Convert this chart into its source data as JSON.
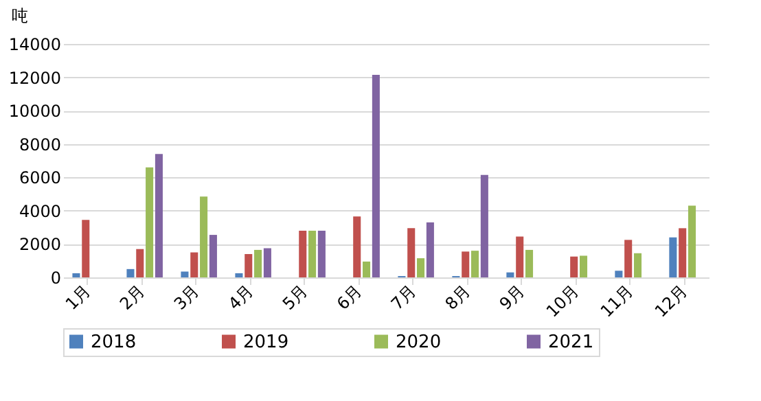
{
  "chart_data": {
    "type": "bar",
    "ylabel": "吨",
    "categories": [
      "1月",
      "2月",
      "3月",
      "4月",
      "5月",
      "6月",
      "7月",
      "8月",
      "9月",
      "10月",
      "11月",
      "12月"
    ],
    "series": [
      {
        "name": "2018",
        "color": "#4f81bd",
        "values": [
          250,
          500,
          350,
          250,
          null,
          null,
          80,
          80,
          300,
          null,
          400,
          2400
        ]
      },
      {
        "name": "2019",
        "color": "#c0504d",
        "values": [
          3450,
          1700,
          1500,
          1400,
          2800,
          3650,
          2950,
          1550,
          2450,
          1250,
          2250,
          2950
        ]
      },
      {
        "name": "2020",
        "color": "#9bbb59",
        "values": [
          null,
          6600,
          4850,
          1650,
          2800,
          950,
          1150,
          1600,
          1650,
          1300,
          1450,
          4300
        ]
      },
      {
        "name": "2021",
        "color": "#8064a2",
        "values": [
          null,
          7400,
          2550,
          1750,
          2800,
          12150,
          3300,
          6150,
          null,
          null,
          null,
          null
        ]
      }
    ],
    "ylim": [
      0,
      14000
    ],
    "yticks": [
      0,
      2000,
      4000,
      6000,
      8000,
      10000,
      12000,
      14000
    ],
    "grid": "y",
    "legend": "bottom"
  }
}
